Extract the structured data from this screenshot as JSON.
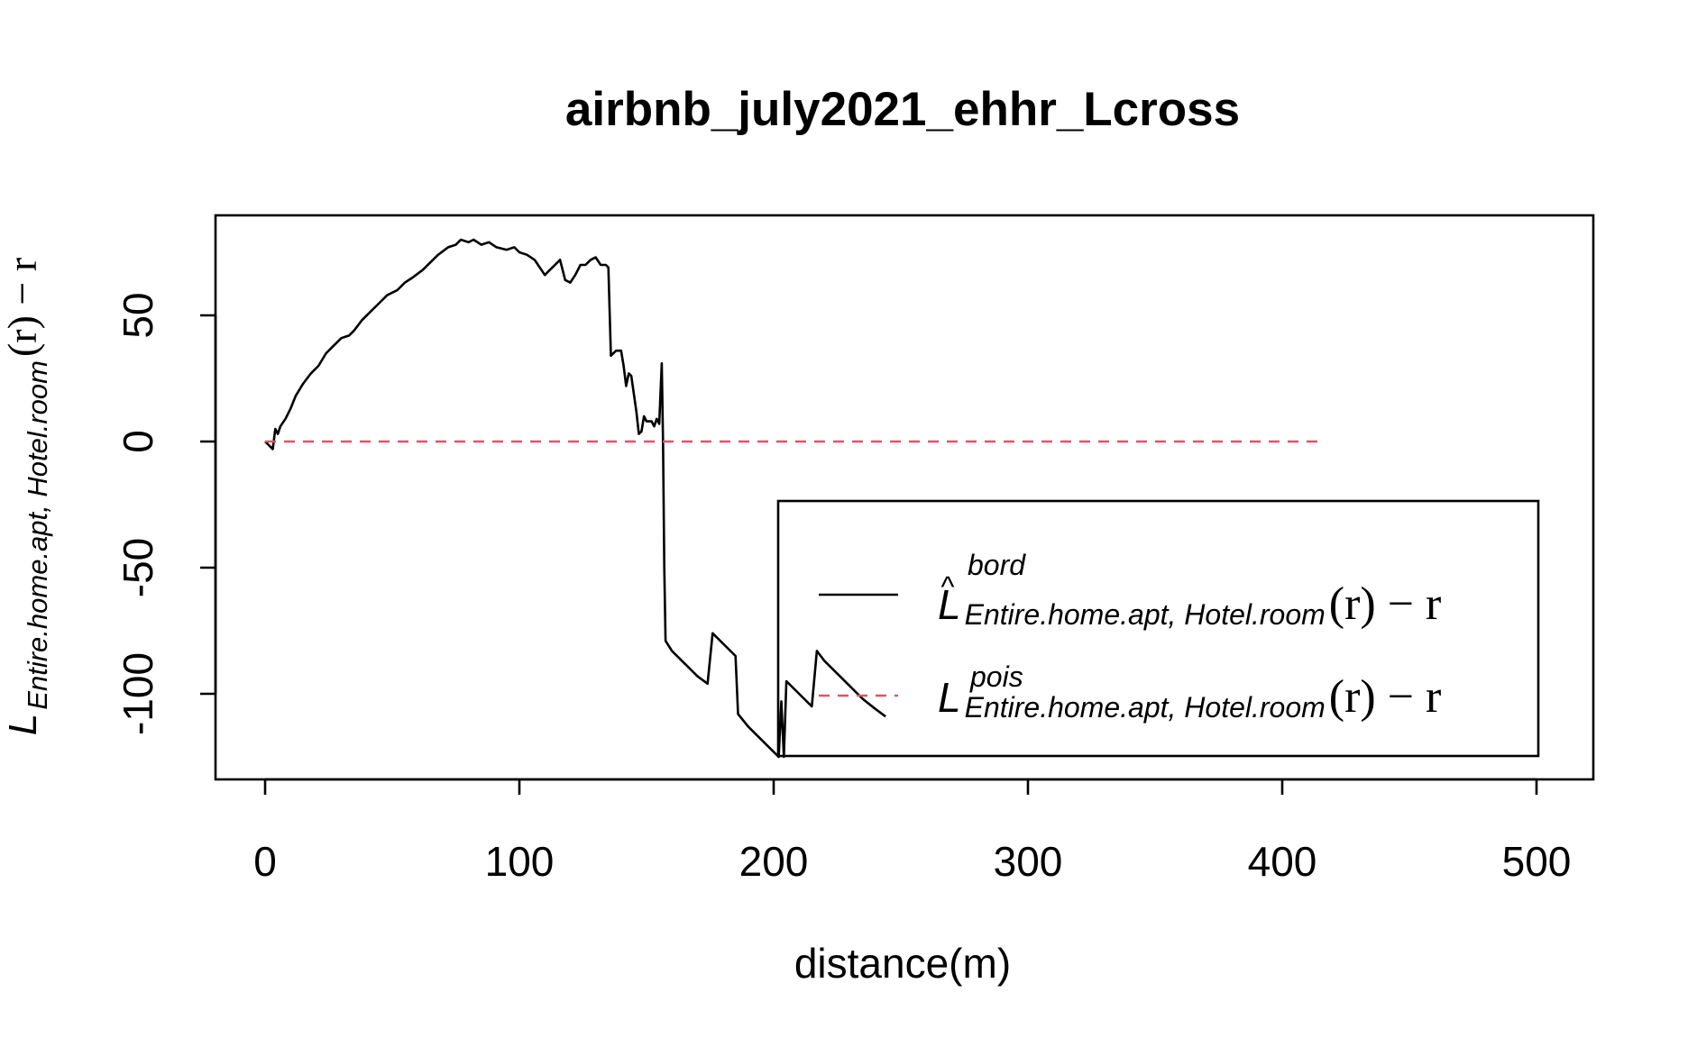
{
  "chart_data": {
    "type": "line",
    "title": "airbnb_july2021_ehhr_Lcross",
    "xlabel": "distance(m)",
    "ylabel": {
      "main": "L",
      "sub": "Entire.home.apt, Hotel.room",
      "tail": "(r) − r"
    },
    "xlim": [
      0,
      500
    ],
    "ylim": [
      -125,
      82
    ],
    "x_ticks": [
      "0",
      "100",
      "200",
      "300",
      "400",
      "500"
    ],
    "y_ticks": [
      "-100",
      "-50",
      "0",
      "50"
    ],
    "grid": false,
    "legend_position": "bottom-right",
    "series": [
      {
        "key": "bord",
        "line_style": "solid",
        "color": "#000000",
        "legend": {
          "main": "L",
          "hat": "^",
          "sup": "bord",
          "sub": "Entire.home.apt, Hotel.room",
          "tail": "(r) − r"
        },
        "points": [
          [
            0,
            0
          ],
          [
            2,
            -2
          ],
          [
            3,
            -3
          ],
          [
            4,
            5
          ],
          [
            5,
            3
          ],
          [
            6,
            6
          ],
          [
            8,
            9
          ],
          [
            10,
            13
          ],
          [
            12,
            18
          ],
          [
            15,
            23
          ],
          [
            18,
            27
          ],
          [
            21,
            30
          ],
          [
            24,
            35
          ],
          [
            27,
            38
          ],
          [
            30,
            41
          ],
          [
            33,
            42
          ],
          [
            35,
            44
          ],
          [
            38,
            48
          ],
          [
            41,
            51
          ],
          [
            45,
            55
          ],
          [
            48,
            58
          ],
          [
            52,
            60
          ],
          [
            55,
            63
          ],
          [
            58,
            65
          ],
          [
            62,
            68
          ],
          [
            65,
            71
          ],
          [
            68,
            74
          ],
          [
            72,
            77
          ],
          [
            75,
            78
          ],
          [
            77,
            80
          ],
          [
            80,
            79
          ],
          [
            82,
            80
          ],
          [
            85,
            78
          ],
          [
            88,
            79
          ],
          [
            91,
            77
          ],
          [
            95,
            76
          ],
          [
            98,
            77
          ],
          [
            100,
            75
          ],
          [
            103,
            74
          ],
          [
            106,
            72
          ],
          [
            108,
            69
          ],
          [
            110,
            66
          ],
          [
            112,
            68
          ],
          [
            114,
            70
          ],
          [
            116,
            72
          ],
          [
            118,
            64
          ],
          [
            120,
            63
          ],
          [
            122,
            66
          ],
          [
            124,
            70
          ],
          [
            126,
            70
          ],
          [
            128,
            72
          ],
          [
            130,
            73
          ],
          [
            132,
            70
          ],
          [
            134,
            70
          ],
          [
            135,
            69
          ],
          [
            136,
            34
          ],
          [
            138,
            36
          ],
          [
            140,
            36
          ],
          [
            141,
            30
          ],
          [
            142,
            22
          ],
          [
            143,
            27
          ],
          [
            144,
            26
          ],
          [
            146,
            12
          ],
          [
            147,
            3
          ],
          [
            148,
            4
          ],
          [
            149,
            10
          ],
          [
            150,
            8
          ],
          [
            152,
            8
          ],
          [
            153,
            6
          ],
          [
            154,
            9
          ],
          [
            155,
            7
          ],
          [
            156,
            31
          ],
          [
            156.5,
            0
          ],
          [
            157,
            -50
          ],
          [
            157.5,
            -79
          ],
          [
            160,
            -83
          ],
          [
            165,
            -88
          ],
          [
            170,
            -93
          ],
          [
            174,
            -96
          ],
          [
            176,
            -76
          ],
          [
            180,
            -80
          ],
          [
            185,
            -85
          ],
          [
            186,
            -108
          ],
          [
            190,
            -113
          ],
          [
            195,
            -118
          ],
          [
            200,
            -123
          ],
          [
            202,
            -125
          ],
          [
            203,
            -103
          ],
          [
            204,
            -125
          ],
          [
            205,
            -95
          ],
          [
            210,
            -100
          ],
          [
            215,
            -105
          ],
          [
            217,
            -83
          ],
          [
            220,
            -87
          ],
          [
            225,
            -92
          ],
          [
            230,
            -97
          ],
          [
            235,
            -102
          ],
          [
            240,
            -106
          ],
          [
            244,
            -109
          ]
        ]
      },
      {
        "key": "pois",
        "line_style": "dashed",
        "color": "#DF536B",
        "legend": {
          "main": "L",
          "sup": "pois",
          "sub": "Entire.home.apt, Hotel.room",
          "tail": "(r) − r"
        },
        "points": [
          [
            0,
            0
          ],
          [
            417,
            0
          ]
        ]
      }
    ]
  }
}
